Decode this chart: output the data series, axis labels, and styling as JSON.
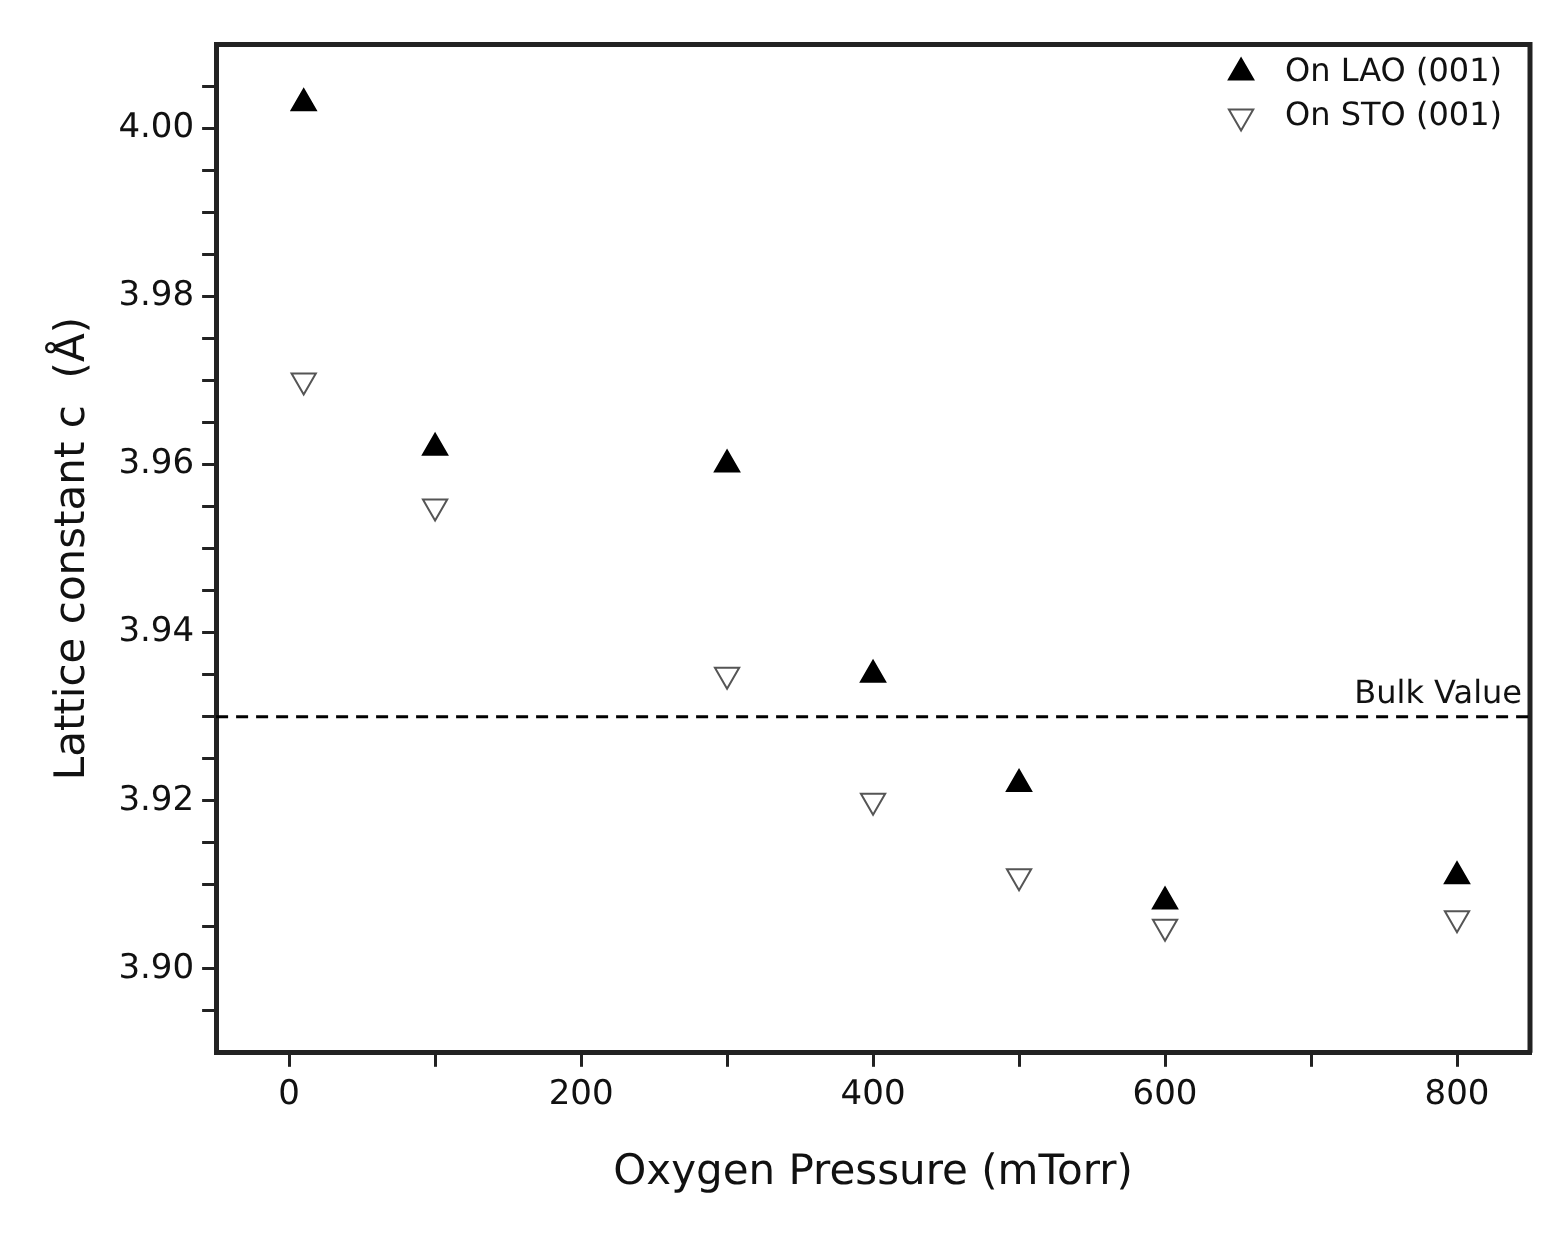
{
  "chart_data": {
    "type": "scatter",
    "xlabel": "Oxygen Pressure (mTorr)",
    "ylabel": "Lattice constant c  (Å)",
    "marker": "triangle",
    "legend": "top right",
    "grid": false,
    "xlim": [
      -50,
      850
    ],
    "xticks": [
      0,
      {
        "value": 100,
        "label": null
      },
      200,
      {
        "value": 300,
        "label": null
      },
      400,
      {
        "value": 500,
        "label": null
      },
      600,
      {
        "value": 700,
        "label": null
      },
      800
    ],
    "ylim": [
      3.89,
      4.01
    ],
    "yticks": [
      {
        "value": 3.895,
        "label": null
      },
      {
        "value": 3.9,
        "label": "3.90"
      },
      {
        "value": 3.905,
        "label": null
      },
      {
        "value": 3.91,
        "label": null
      },
      {
        "value": 3.915,
        "label": null
      },
      {
        "value": 3.92,
        "label": "3.92"
      },
      {
        "value": 3.925,
        "label": null
      },
      {
        "value": 3.93,
        "label": null
      },
      {
        "value": 3.935,
        "label": null
      },
      {
        "value": 3.94,
        "label": "3.94"
      },
      {
        "value": 3.945,
        "label": null
      },
      {
        "value": 3.95,
        "label": null
      },
      {
        "value": 3.955,
        "label": null
      },
      {
        "value": 3.96,
        "label": "3.96"
      },
      {
        "value": 3.965,
        "label": null
      },
      {
        "value": 3.97,
        "label": null
      },
      {
        "value": 3.975,
        "label": null
      },
      {
        "value": 3.98,
        "label": "3.98"
      },
      {
        "value": 3.985,
        "label": null
      },
      {
        "value": 3.99,
        "label": null
      },
      {
        "value": 3.995,
        "label": null
      },
      {
        "value": 4.0,
        "label": "4.00"
      },
      {
        "value": 4.005,
        "label": null
      }
    ],
    "series": [
      {
        "name": "On LAO (001)",
        "color": "#000000",
        "x": [
          10,
          100,
          300,
          400,
          500,
          600,
          800
        ],
        "values": [
          4.003,
          3.962,
          3.96,
          3.935,
          3.922,
          3.908,
          3.911
        ]
      },
      {
        "name": "On STO (001)",
        "color": "#ffffff",
        "x": [
          10,
          100,
          300,
          400,
          500,
          600,
          800
        ],
        "values": [
          3.97,
          3.955,
          3.935,
          3.92,
          3.911,
          3.905,
          3.906
        ]
      }
    ],
    "ref_lines": [
      {
        "axis": "y",
        "value": 3.93,
        "label": "Bulk Value",
        "line_style": "dashed",
        "color": "#000000"
      }
    ]
  }
}
